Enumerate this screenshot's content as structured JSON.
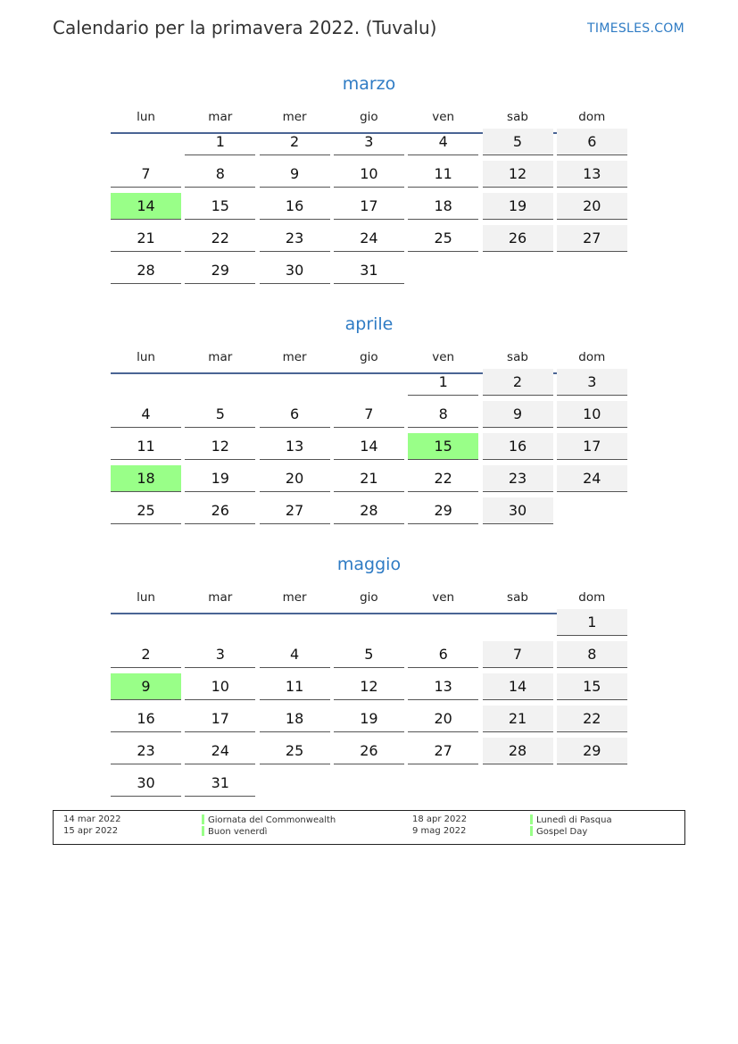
{
  "header": {
    "title": "Calendario per la primavera 2022. (Tuvalu)",
    "brand": "TIMESLES.COM"
  },
  "weekdays": [
    "lun",
    "mar",
    "mer",
    "gio",
    "ven",
    "sab",
    "dom"
  ],
  "colors": {
    "accent": "#2e7bc4",
    "holiday": "#99ff88",
    "weekend": "#f2f2f2",
    "rule": "#4a6494"
  },
  "months": [
    {
      "name": "marzo",
      "weeks": [
        [
          null,
          1,
          2,
          3,
          4,
          5,
          6
        ],
        [
          7,
          8,
          9,
          10,
          11,
          12,
          13
        ],
        [
          14,
          15,
          16,
          17,
          18,
          19,
          20
        ],
        [
          21,
          22,
          23,
          24,
          25,
          26,
          27
        ],
        [
          28,
          29,
          30,
          31,
          null,
          null,
          null
        ]
      ],
      "holidays": [
        14
      ]
    },
    {
      "name": "aprile",
      "weeks": [
        [
          null,
          null,
          null,
          null,
          1,
          2,
          3
        ],
        [
          4,
          5,
          6,
          7,
          8,
          9,
          10
        ],
        [
          11,
          12,
          13,
          14,
          15,
          16,
          17
        ],
        [
          18,
          19,
          20,
          21,
          22,
          23,
          24
        ],
        [
          25,
          26,
          27,
          28,
          29,
          30,
          null
        ]
      ],
      "holidays": [
        15,
        18
      ]
    },
    {
      "name": "maggio",
      "weeks": [
        [
          null,
          null,
          null,
          null,
          null,
          null,
          1
        ],
        [
          2,
          3,
          4,
          5,
          6,
          7,
          8
        ],
        [
          9,
          10,
          11,
          12,
          13,
          14,
          15
        ],
        [
          16,
          17,
          18,
          19,
          20,
          21,
          22
        ],
        [
          23,
          24,
          25,
          26,
          27,
          28,
          29
        ],
        [
          30,
          31,
          null,
          null,
          null,
          null,
          null
        ]
      ],
      "holidays": [
        9
      ]
    }
  ],
  "legend": [
    {
      "date": "14 mar 2022",
      "name": "Giornata del Commonwealth"
    },
    {
      "date": "15 apr 2022",
      "name": "Buon venerdì"
    },
    {
      "date": "18 apr 2022",
      "name": "Lunedì di Pasqua"
    },
    {
      "date": "9 mag 2022",
      "name": "Gospel Day"
    }
  ]
}
